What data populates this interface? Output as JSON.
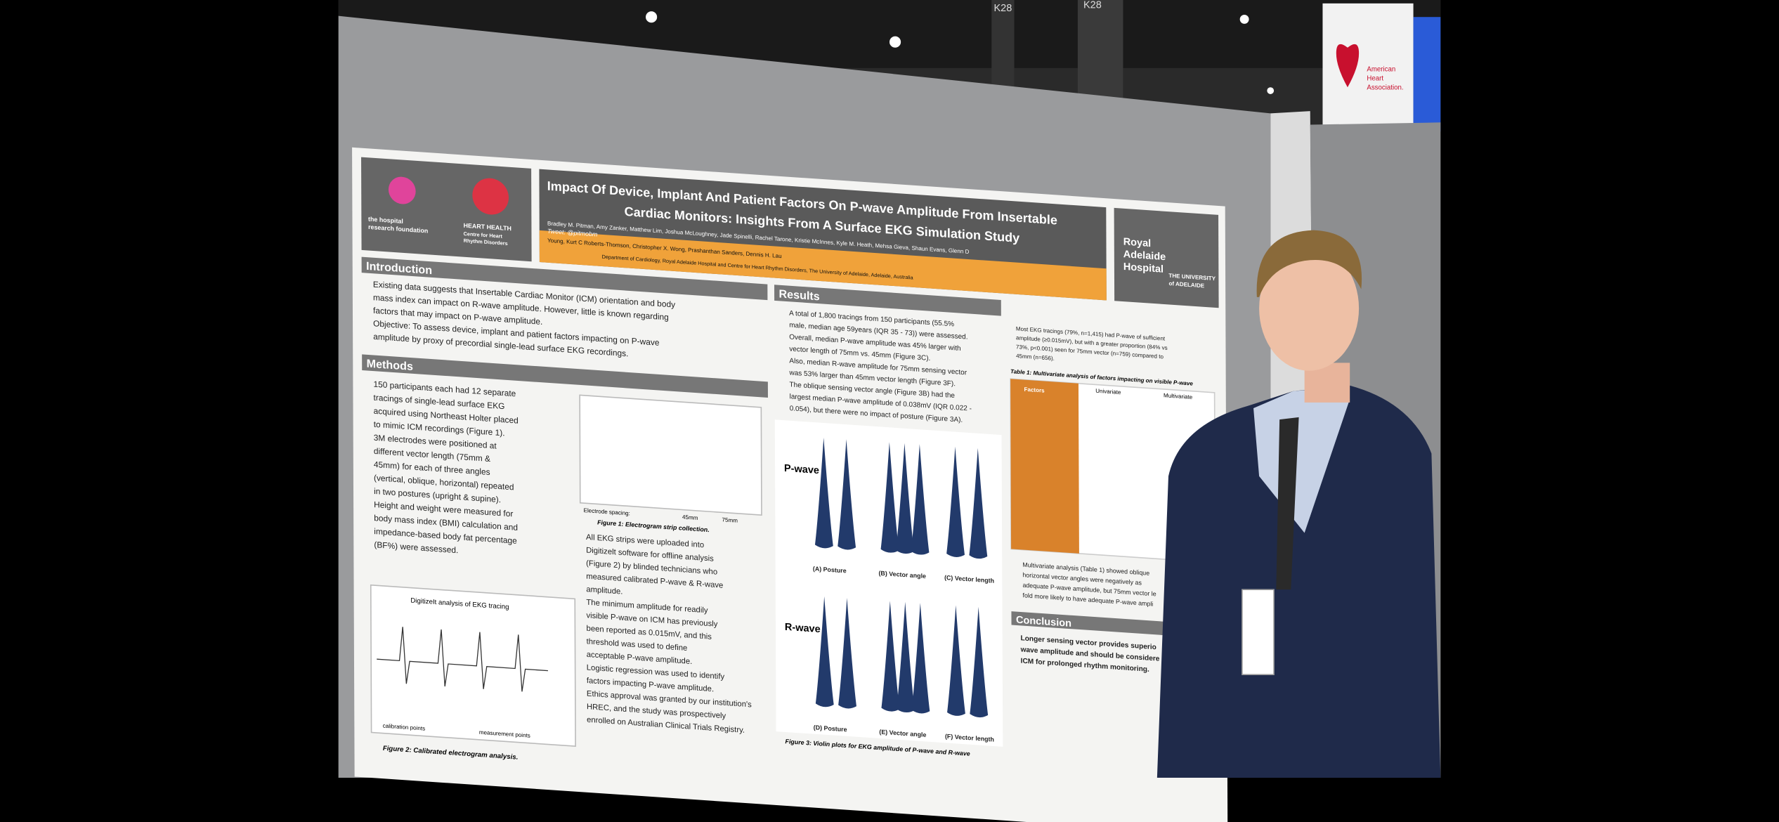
{
  "photo": {
    "signage": {
      "booth": [
        "K28",
        "K28"
      ],
      "banner": [
        "American",
        "Heart",
        "Association."
      ]
    },
    "poster": {
      "logos_left": [
        "the hospital",
        "research foundation",
        "HEART HEALTH",
        "Centre for Heart",
        "Rhythm Disorders"
      ],
      "logos_right": [
        "Royal",
        "Adelaide",
        "Hospital",
        "THE UNIVERSITY",
        "of ADELAIDE"
      ],
      "title": [
        "Impact Of Device, Implant And Patient Factors On P-wave Amplitude From Insertable",
        "Cardiac Monitors: Insights From A Surface EKG Simulation Study"
      ],
      "authors": [
        "Bradley M. Pitman, Amy Zanker, Matthew Lim, Joshua McLoughney, Jade Spinelli, Rachel Tarone, Kristie McInnes, Kyle M. Heath, Mehsa Gieva, Shaun Evans, Glenn D",
        "Young, Kurt C Roberts-Thomson, Christopher X. Wong, Prashanthan Sanders, Dennis H. Lau",
        "Department of Cardiology, Royal Adelaide Hospital and Centre for Heart Rhythm Disorders, The University of Adelaide, Adelaide, Australia"
      ],
      "tweet": "Tweet: @pitmobm",
      "introduction": {
        "heading": "Introduction",
        "lines": [
          "Existing data suggests that Insertable Cardiac Monitor (ICM) orientation and body",
          "mass index can impact on R-wave amplitude. However, little is known regarding",
          "factors that may impact on P-wave amplitude.",
          "Objective: To assess device, implant and patient factors impacting on P-wave",
          "amplitude by proxy of precordial single-lead surface EKG recordings."
        ]
      },
      "methods": {
        "heading": "Methods",
        "lines": [
          "150 participants each had 12 separate",
          "tracings of single-lead surface EKG",
          "acquired using Northeast Holter placed",
          "to mimic ICM recordings (Figure 1).",
          "3M electrodes were positioned at",
          "different vector length (75mm &",
          "45mm) for each of three angles",
          "(vertical, oblique, horizontal) repeated",
          "in two postures (upright & supine).",
          "Height and weight were measured for",
          "body mass index (BMI) calculation and",
          "impedance-based body fat percentage",
          "(BF%) were assessed."
        ],
        "figure1": "Figure 1: Electrogram strip collection.",
        "figure2": "Figure 2: Calibrated electrogram analysis.",
        "digitizeit": "DigitizeIt analysis of EKG tracing",
        "legend": [
          "calibration points",
          "measurement points"
        ],
        "spacing": [
          "Electrode spacing:",
          "45mm",
          "75mm"
        ],
        "more": [
          "All EKG strips were uploaded into",
          "Digitizelt software for offline analysis",
          "(Figure 2) by blinded technicians who",
          "measured calibrated P-wave & R-wave",
          "amplitude.",
          "The minimum amplitude for readily",
          "visible P-wave on ICM has previously",
          "been reported as 0.015mV, and this",
          "threshold was used to define",
          "acceptable P-wave amplitude.",
          "Logistic regression was used to identify",
          "factors impacting P-wave amplitude.",
          "Ethics approval was granted by our institution's",
          "HREC, and the study was prospectively",
          "enrolled on Australian Clinical Trials Registry."
        ]
      },
      "results": {
        "heading": "Results",
        "lines": [
          "A total of 1,800 tracings from 150 participants (55.5%",
          "male, median age 59years (IQR 35 - 73)) were assessed.",
          "Overall, median P-wave amplitude was 45% larger with",
          "vector length of 75mm vs. 45mm (Figure 3C).",
          "Also, median R-wave amplitude for 75mm sensing vector",
          "was 53% larger than 45mm vector length (Figure 3F).",
          "The oblique sensing vector angle (Figure 3B) had the",
          "largest median P-wave amplitude of 0.038mV (IQR 0.022 -",
          "0.054), but there were no impact of posture (Figure 3A)."
        ],
        "pwave": "P-wave",
        "rwave": "R-wave",
        "panels": [
          "(A) Posture",
          "(B) Vector angle",
          "(C) Vector length",
          "(D) Posture",
          "(E) Vector angle",
          "(F) Vector length"
        ],
        "figure3": "Figure 3: Violin plots for EKG amplitude of P-wave and R-wave",
        "right": [
          "Most EKG tracings (79%, n=1,415) had P-wave of sufficient",
          "amplitude (≥0.015mV), but with a greater proportion (84% vs",
          "73%, p<0.001) seen for 75mm vector (n=759) compared to",
          "45mm (n=656)."
        ],
        "table1": "Table 1: Multivariate analysis of factors impacting on visible P-wave",
        "table_head": [
          "Factors",
          "Univariate",
          "Multivariate"
        ],
        "after": [
          "Multivariate analysis (Table 1) showed oblique",
          "horizontal vector angles were negatively as",
          "adequate P-wave amplitude, but 75mm vector le",
          "fold more likely to have adequate P-wave ampli"
        ]
      },
      "conclusion": {
        "heading": "Conclusion",
        "lines": [
          "Longer sensing vector provides superio",
          "wave amplitude and should be considere",
          "ICM for prolonged rhythm monitoring."
        ]
      }
    }
  }
}
